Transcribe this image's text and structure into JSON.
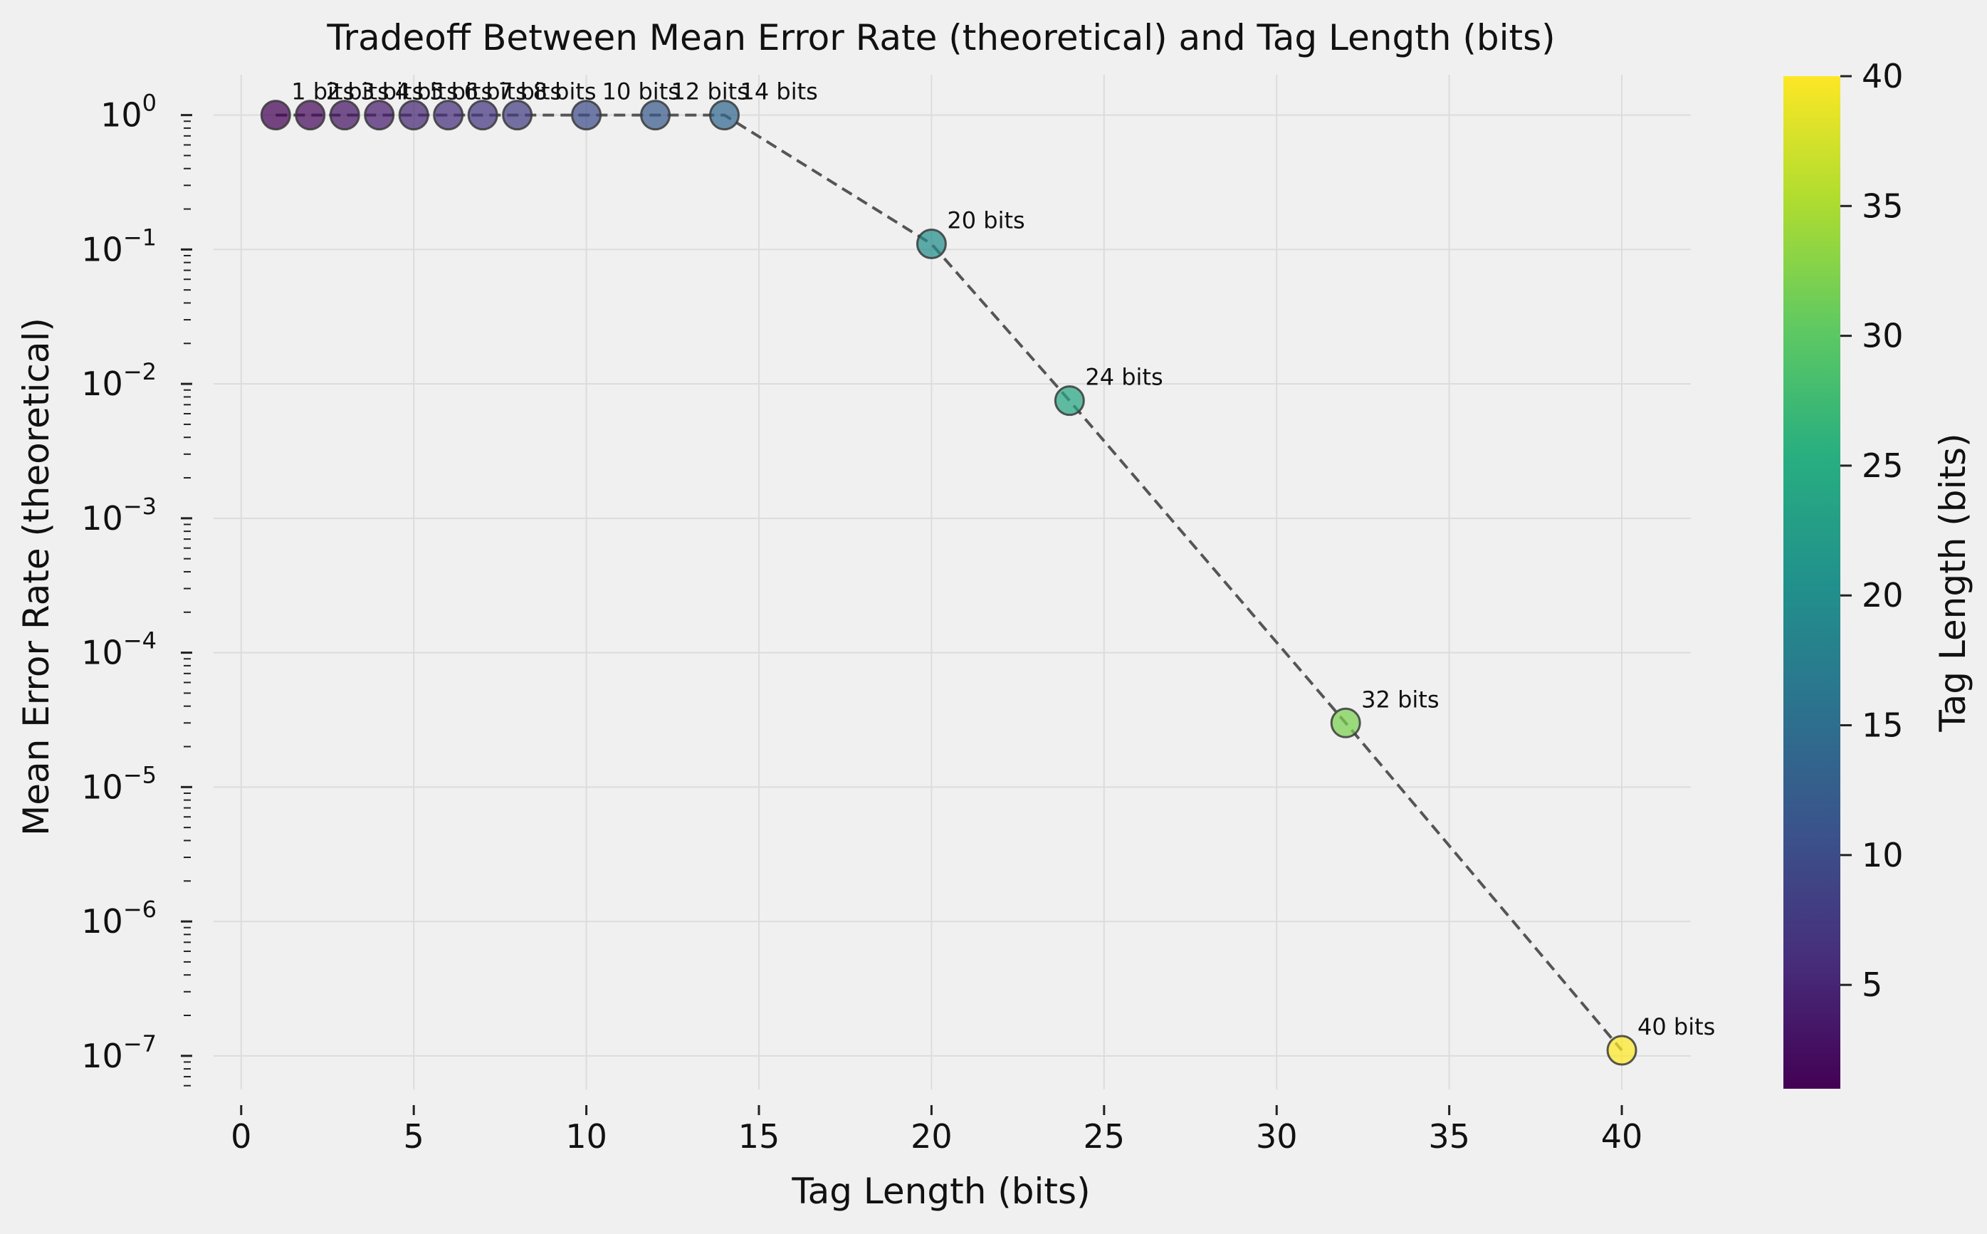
{
  "chart_data": {
    "type": "scatter",
    "title": "Tradeoff Between Mean Error Rate (theoretical) and Tag Length (bits)",
    "xlabel": "Tag Length (bits)",
    "ylabel": "Mean Error Rate (theoretical)",
    "xlim": [
      -0.8,
      42
    ],
    "ylim_log10": [
      -7.25,
      0.3
    ],
    "y_scale": "log",
    "grid": true,
    "x_ticks": [
      0,
      5,
      10,
      15,
      20,
      25,
      30,
      35,
      40
    ],
    "x_tick_labels": [
      "0",
      "5",
      "10",
      "15",
      "20",
      "25",
      "30",
      "35",
      "40"
    ],
    "y_ticks_log10": [
      0,
      -1,
      -2,
      -3,
      -4,
      -5,
      -6,
      -7
    ],
    "y_tick_labels": [
      "0",
      "−1",
      "−2",
      "−3",
      "−4",
      "−5",
      "−6",
      "−7"
    ],
    "y_tick_base": "10",
    "line_style": "dashed",
    "line_color": "#555555",
    "colormap": "viridis",
    "colorbar": {
      "label": "Tag Length (bits)",
      "range": [
        1,
        40
      ],
      "ticks": [
        5,
        10,
        15,
        20,
        25,
        30,
        35,
        40
      ],
      "tick_labels": [
        "5",
        "10",
        "15",
        "20",
        "25",
        "30",
        "35",
        "40"
      ]
    },
    "points": [
      {
        "x": 1,
        "y": 1.0,
        "label": "1 bits"
      },
      {
        "x": 2,
        "y": 1.0,
        "label": "2 bits"
      },
      {
        "x": 3,
        "y": 1.0,
        "label": "3 bits"
      },
      {
        "x": 4,
        "y": 1.0,
        "label": "4 bits"
      },
      {
        "x": 5,
        "y": 1.0,
        "label": "5 bits"
      },
      {
        "x": 6,
        "y": 1.0,
        "label": "6 bits"
      },
      {
        "x": 7,
        "y": 1.0,
        "label": "7 bits"
      },
      {
        "x": 8,
        "y": 1.0,
        "label": "8 bits"
      },
      {
        "x": 10,
        "y": 1.0,
        "label": "10 bits"
      },
      {
        "x": 12,
        "y": 1.0,
        "label": "12 bits"
      },
      {
        "x": 14,
        "y": 1.0,
        "label": "14 bits"
      },
      {
        "x": 20,
        "y": 0.11,
        "label": "20 bits"
      },
      {
        "x": 24,
        "y": 0.0075,
        "label": "24 bits"
      },
      {
        "x": 32,
        "y": 3e-05,
        "label": "32 bits"
      },
      {
        "x": 40,
        "y": 1.1e-07,
        "label": "40 bits"
      }
    ]
  }
}
